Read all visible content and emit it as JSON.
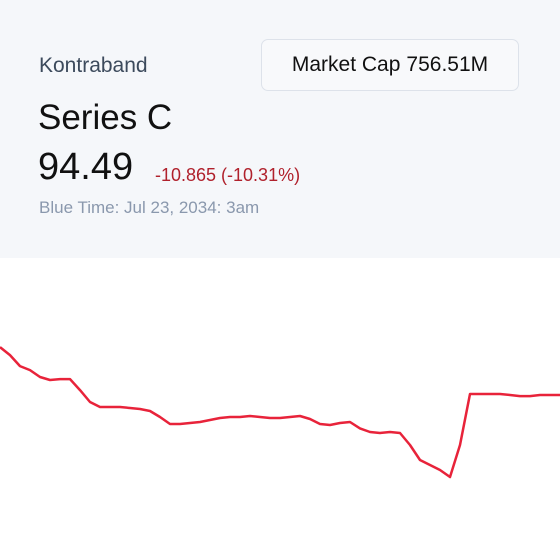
{
  "header": {
    "brand": "Kontraband",
    "title": "Series C",
    "price": "94.49",
    "change": "-10.865 (-10.31%)",
    "timestamp": "Blue Time: Jul 23, 2034: 3am",
    "market_cap_label": "Market Cap",
    "market_cap_value": "756.51M"
  },
  "chart_data": {
    "type": "line",
    "color": "#e8233a",
    "ylim": [
      57.1,
      125.1
    ],
    "values": [
      105.36,
      103.55,
      101.06,
      100.15,
      98.57,
      97.89,
      98.11,
      98.11,
      95.62,
      92.91,
      91.77,
      91.77,
      91.77,
      91.55,
      91.32,
      90.87,
      89.51,
      87.92,
      87.92,
      88.15,
      88.38,
      88.83,
      89.28,
      89.51,
      89.51,
      89.74,
      89.51,
      89.28,
      89.28,
      89.51,
      89.74,
      89.06,
      87.92,
      87.7,
      88.15,
      88.38,
      86.92,
      86.11,
      85.89,
      86.11,
      85.89,
      83.17,
      79.77,
      78.64,
      77.51,
      75.92,
      83.17,
      94.72,
      94.72,
      94.72,
      94.72,
      94.49,
      94.26,
      94.26,
      94.49,
      94.49,
      94.49
    ]
  }
}
